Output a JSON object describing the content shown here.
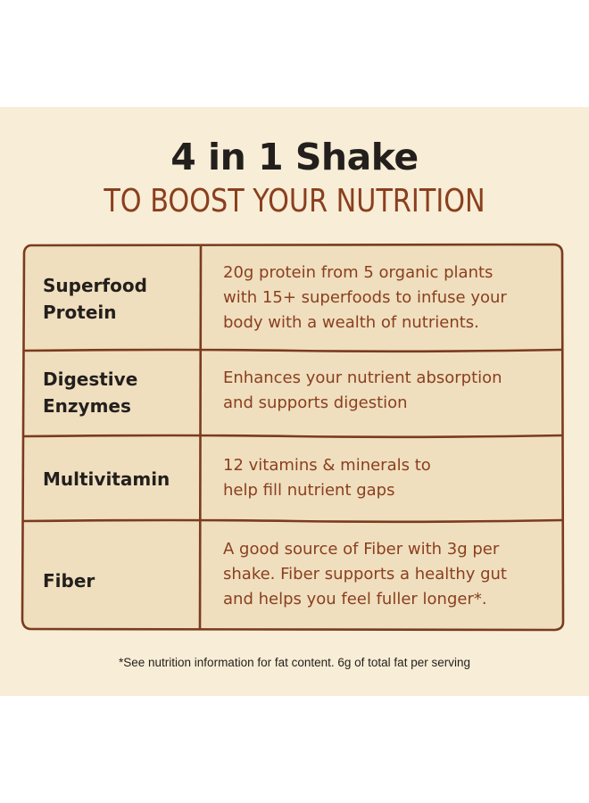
{
  "header": {
    "title": "4 in 1 Shake",
    "subtitle": "TO BOOST YOUR NUTRITION"
  },
  "rows": [
    {
      "label_line1": "Superfood",
      "label_line2": "Protein",
      "desc_line1": "20g protein from 5 organic plants",
      "desc_line2": "with 15+ superfoods to infuse your",
      "desc_line3": "body with a wealth of nutrients."
    },
    {
      "label_line1": "Digestive",
      "label_line2": "Enzymes",
      "desc_line1": "Enhances your nutrient absorption",
      "desc_line2": "and supports digestion"
    },
    {
      "label_line1": "Multivitamin",
      "desc_line1": "12 vitamins & minerals to",
      "desc_line2": "help fill nutrient gaps"
    },
    {
      "label_line1": "Fiber",
      "desc_line1": "A good source of Fiber with 3g per",
      "desc_line2": "shake. Fiber supports a healthy gut",
      "desc_line3": "and helps you feel fuller longer*."
    }
  ],
  "footnote": "*See nutrition information for fat content. 6g of total fat per serving",
  "colors": {
    "panel_bg": "#f8edd6",
    "table_bg": "#efdfbf",
    "border": "#7a3b1e",
    "heading": "#231f1c",
    "accent": "#8a3f1e"
  }
}
